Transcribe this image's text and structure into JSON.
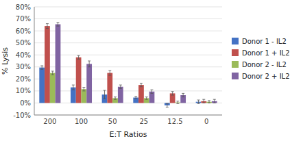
{
  "chart_data": {
    "type": "bar",
    "xlabel": "E:T Ratios",
    "ylabel": "% Lysis",
    "categories": [
      "200",
      "100",
      "50",
      "25",
      "12.5",
      "0"
    ],
    "series": [
      {
        "name": "Donor 1 - IL2",
        "color": "#4472C4",
        "values": [
          29.5,
          13.0,
          7.0,
          4.5,
          -2.0,
          1.0
        ],
        "errors": [
          1.5,
          2.0,
          3.5,
          1.0,
          1.5,
          1.5
        ]
      },
      {
        "name": "Donor 1 + IL2",
        "color": "#C0504D",
        "values": [
          64.0,
          38.0,
          25.0,
          15.0,
          8.0,
          1.5
        ],
        "errors": [
          2.0,
          1.5,
          2.0,
          1.5,
          1.5,
          1.5
        ]
      },
      {
        "name": "Donor 2 - IL2",
        "color": "#9BBB59",
        "values": [
          25.0,
          11.5,
          4.0,
          4.0,
          0.5,
          1.0
        ],
        "errors": [
          1.5,
          1.5,
          1.0,
          1.0,
          1.0,
          1.0
        ]
      },
      {
        "name": "Donor 2 + IL2",
        "color": "#8064A2",
        "values": [
          65.5,
          32.5,
          13.5,
          9.5,
          6.5,
          1.5
        ],
        "errors": [
          1.5,
          2.5,
          1.5,
          1.5,
          1.5,
          1.5
        ]
      }
    ],
    "ylim": [
      -10,
      80
    ],
    "yticks": [
      {
        "value": -10,
        "label": "-10%"
      },
      {
        "value": 0,
        "label": "0%"
      },
      {
        "value": 10,
        "label": "10%"
      },
      {
        "value": 20,
        "label": "20%"
      },
      {
        "value": 30,
        "label": "30%"
      },
      {
        "value": 40,
        "label": "40%"
      },
      {
        "value": 50,
        "label": "50%"
      },
      {
        "value": 60,
        "label": "60%"
      },
      {
        "value": 70,
        "label": "70%"
      },
      {
        "value": 80,
        "label": "80%"
      }
    ],
    "grid": true,
    "legend": "right"
  }
}
